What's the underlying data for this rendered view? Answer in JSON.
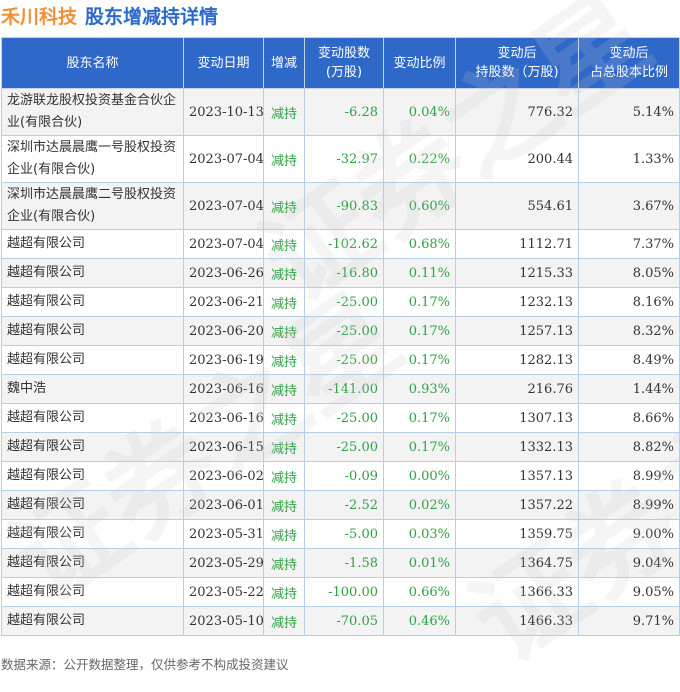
{
  "header": {
    "company": "禾川科技",
    "subtitle": "股东增减持详情"
  },
  "table": {
    "columns": [
      {
        "line1": "股东名称",
        "line2": ""
      },
      {
        "line1": "变动日期",
        "line2": ""
      },
      {
        "line1": "增减",
        "line2": ""
      },
      {
        "line1": "变动股数",
        "line2": "(万股)"
      },
      {
        "line1": "变动比例",
        "line2": ""
      },
      {
        "line1": "变动后",
        "line2": "持股数（万股)"
      },
      {
        "line1": "变动后",
        "line2": "占总股本比例"
      }
    ],
    "rows": [
      {
        "name": "龙游联龙股权投资基金合伙企业(有限合伙)",
        "date": "2023-10-13",
        "action": "减持",
        "change": "-6.28",
        "ratio": "0.04%",
        "after_shares": "776.32",
        "after_pct": "5.14%"
      },
      {
        "name": "深圳市达晨晨鹰一号股权投资企业(有限合伙)",
        "date": "2023-07-04",
        "action": "减持",
        "change": "-32.97",
        "ratio": "0.22%",
        "after_shares": "200.44",
        "after_pct": "1.33%"
      },
      {
        "name": "深圳市达晨晨鹰二号股权投资企业(有限合伙)",
        "date": "2023-07-04",
        "action": "减持",
        "change": "-90.83",
        "ratio": "0.60%",
        "after_shares": "554.61",
        "after_pct": "3.67%"
      },
      {
        "name": "越超有限公司",
        "date": "2023-07-04",
        "action": "减持",
        "change": "-102.62",
        "ratio": "0.68%",
        "after_shares": "1112.71",
        "after_pct": "7.37%"
      },
      {
        "name": "越超有限公司",
        "date": "2023-06-26",
        "action": "减持",
        "change": "-16.80",
        "ratio": "0.11%",
        "after_shares": "1215.33",
        "after_pct": "8.05%"
      },
      {
        "name": "越超有限公司",
        "date": "2023-06-21",
        "action": "减持",
        "change": "-25.00",
        "ratio": "0.17%",
        "after_shares": "1232.13",
        "after_pct": "8.16%"
      },
      {
        "name": "越超有限公司",
        "date": "2023-06-20",
        "action": "减持",
        "change": "-25.00",
        "ratio": "0.17%",
        "after_shares": "1257.13",
        "after_pct": "8.32%"
      },
      {
        "name": "越超有限公司",
        "date": "2023-06-19",
        "action": "减持",
        "change": "-25.00",
        "ratio": "0.17%",
        "after_shares": "1282.13",
        "after_pct": "8.49%"
      },
      {
        "name": "魏中浩",
        "date": "2023-06-16",
        "action": "减持",
        "change": "-141.00",
        "ratio": "0.93%",
        "after_shares": "216.76",
        "after_pct": "1.44%"
      },
      {
        "name": "越超有限公司",
        "date": "2023-06-16",
        "action": "减持",
        "change": "-25.00",
        "ratio": "0.17%",
        "after_shares": "1307.13",
        "after_pct": "8.66%"
      },
      {
        "name": "越超有限公司",
        "date": "2023-06-15",
        "action": "减持",
        "change": "-25.00",
        "ratio": "0.17%",
        "after_shares": "1332.13",
        "after_pct": "8.82%"
      },
      {
        "name": "越超有限公司",
        "date": "2023-06-02",
        "action": "减持",
        "change": "-0.09",
        "ratio": "0.00%",
        "after_shares": "1357.13",
        "after_pct": "8.99%"
      },
      {
        "name": "越超有限公司",
        "date": "2023-06-01",
        "action": "减持",
        "change": "-2.52",
        "ratio": "0.02%",
        "after_shares": "1357.22",
        "after_pct": "8.99%"
      },
      {
        "name": "越超有限公司",
        "date": "2023-05-31",
        "action": "减持",
        "change": "-5.00",
        "ratio": "0.03%",
        "after_shares": "1359.75",
        "after_pct": "9.00%"
      },
      {
        "name": "越超有限公司",
        "date": "2023-05-29",
        "action": "减持",
        "change": "-1.58",
        "ratio": "0.01%",
        "after_shares": "1364.75",
        "after_pct": "9.04%"
      },
      {
        "name": "越超有限公司",
        "date": "2023-05-22",
        "action": "减持",
        "change": "-100.00",
        "ratio": "0.66%",
        "after_shares": "1366.33",
        "after_pct": "9.05%"
      },
      {
        "name": "越超有限公司",
        "date": "2023-05-10",
        "action": "减持",
        "change": "-70.05",
        "ratio": "0.46%",
        "after_shares": "1466.33",
        "after_pct": "9.71%"
      }
    ]
  },
  "footer": {
    "source": "数据来源：公开数据整理，仅供参考不构成投资建议"
  },
  "watermark": {
    "text": "证券之星"
  },
  "colors": {
    "header_bg": "#2e68c8",
    "company": "#f0913a",
    "subtitle": "#2b6acb",
    "decrease": "#2fa245"
  }
}
